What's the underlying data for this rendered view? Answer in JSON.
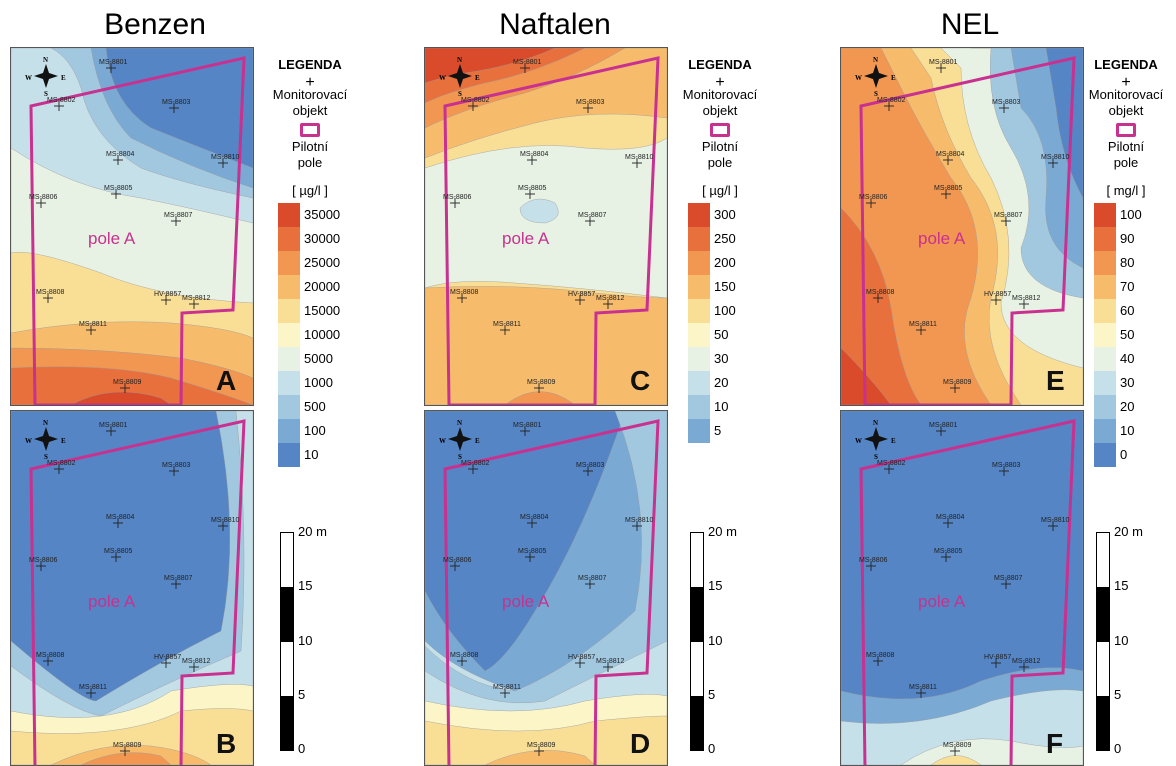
{
  "titles": [
    "Benzen",
    "Naftalen",
    "NEL"
  ],
  "legend": {
    "heading": "LEGENDA",
    "monitor_symbol": "+",
    "monitor_label_1": "Monitorovací",
    "monitor_label_2": "objekt",
    "field_label_1": "Pilotní",
    "field_label_2": "pole",
    "field_color": "#c8318f"
  },
  "units": [
    "[ µg/l ]",
    "[ µg/l ]",
    "[ mg/l ]"
  ],
  "colorbars": [
    {
      "labels": [
        "35000",
        "30000",
        "25000",
        "20000",
        "15000",
        "10000",
        "5000",
        "1000",
        "500",
        "100",
        "10"
      ]
    },
    {
      "labels": [
        "300",
        "250",
        "200",
        "150",
        "100",
        "50",
        "30",
        "20",
        "10",
        "5"
      ]
    },
    {
      "labels": [
        "100",
        "90",
        "80",
        "70",
        "60",
        "50",
        "40",
        "30",
        "20",
        "10",
        "0"
      ]
    }
  ],
  "scale": {
    "labels": [
      "20 m",
      "15",
      "10",
      "5",
      "0"
    ]
  },
  "panel_letters": [
    "A",
    "B",
    "C",
    "D",
    "E",
    "F"
  ],
  "field_name": "pole A",
  "wells": [
    "MS-8801",
    "MS-8802",
    "MS-8803",
    "MS-8804",
    "MS-8805",
    "MS-8806",
    "MS-8807",
    "MS-8808",
    "HV-8857",
    "MS-8812",
    "MS-8811",
    "MS-8809",
    "MS-8810"
  ],
  "compass": {
    "N": "N",
    "S": "S",
    "E": "E",
    "W": "W"
  },
  "palette": {
    "ramp": [
      "#d94b2b",
      "#e8703c",
      "#f19752",
      "#f6bc6c",
      "#f9de96",
      "#fbf5c7",
      "#e7f2e4",
      "#c6e0ea",
      "#a2c8e0",
      "#7aa9d4",
      "#5585c4"
    ]
  }
}
